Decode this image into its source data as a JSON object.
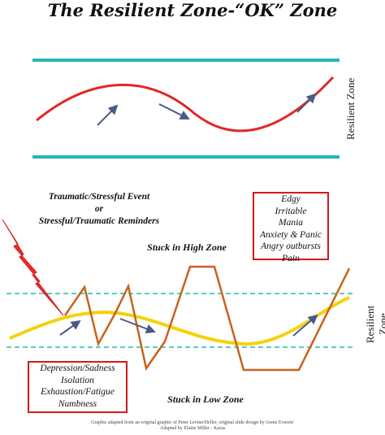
{
  "title": "The Resilient Zone-“OK” Zone",
  "resilient_zone_label_top": "Resilient Zone",
  "resilient_zone_label_bottom": "Resilient Zone",
  "trauma_text": {
    "line1": "Traumatic/Stressful Event",
    "line2": "or",
    "line3": "Stressful/Traumatic Reminders"
  },
  "stuck_high_label": "Stuck in High Zone",
  "stuck_low_label": "Stuck in Low Zone",
  "high_zone_symptoms": [
    "Edgy",
    "Irritable",
    "Mania",
    "Anxiety & Panic",
    "Angry outbursts",
    "Pain"
  ],
  "low_zone_symptoms": [
    "Depression/Sadness",
    "Isolation",
    "Exhaustion/Fatigue",
    "Numbness"
  ],
  "credit": {
    "line1": "Graphic adapted from an original graphic of Peter Levine/Heller, original slide design by Genie Everett/",
    "line2": "Adapted by Elaine Miller - Karas"
  },
  "colors": {
    "zone_line": "#27b5b8",
    "wave_red": "#e32626",
    "wave_yellow": "#f5d20a",
    "zigzag": "#c8621c",
    "arrow": "#4a5a86",
    "lightning": "#ef2b2b",
    "box_border": "#d21a1a"
  },
  "icons": [
    "lightning-bolt-icon",
    "arrow-icon"
  ]
}
